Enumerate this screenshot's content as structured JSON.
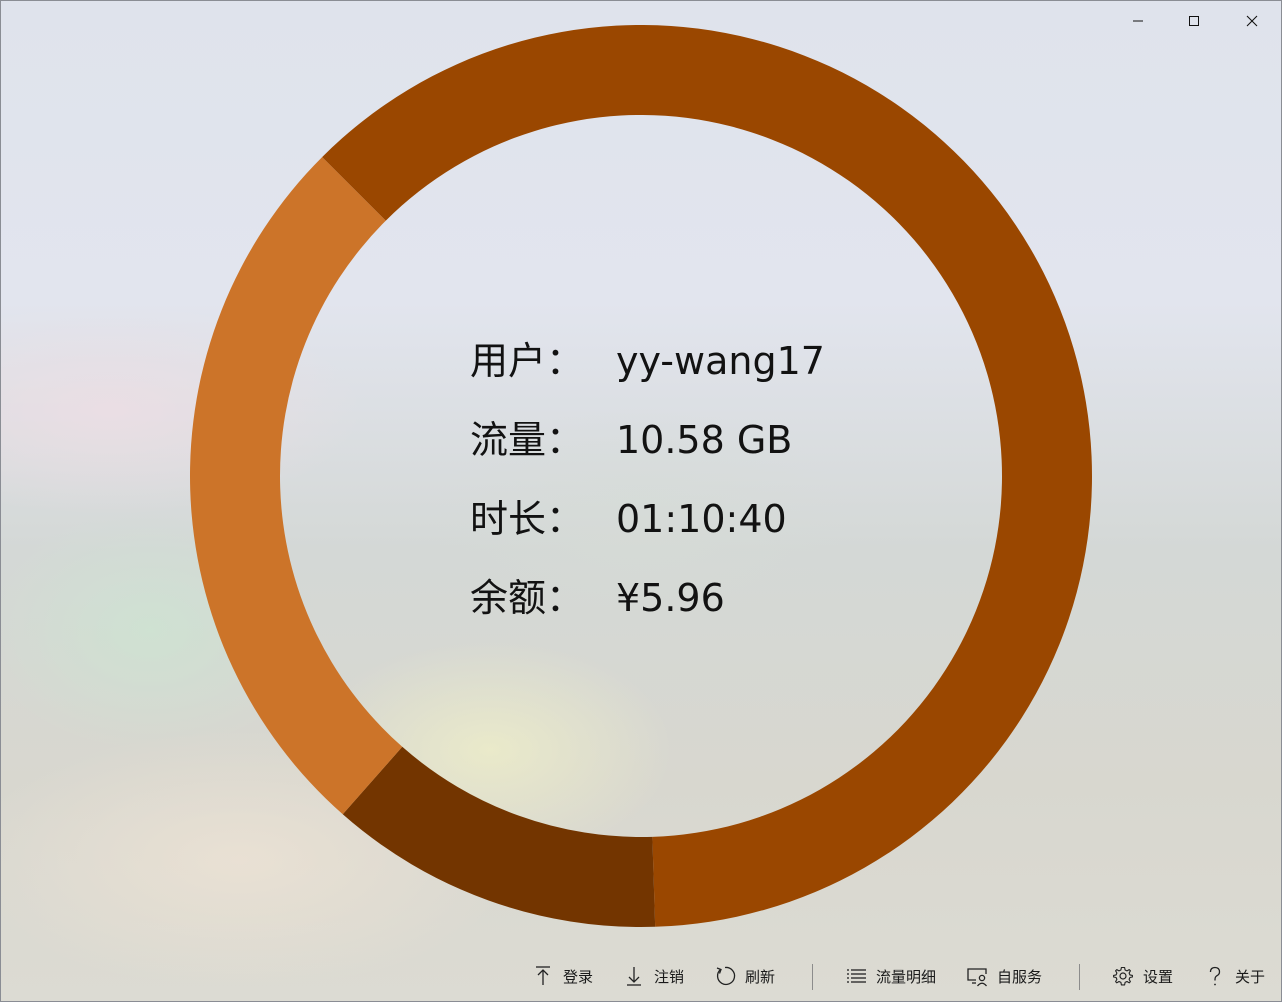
{
  "window": {
    "controls": [
      "minimize-icon",
      "maximize-icon",
      "close-icon"
    ]
  },
  "usage_ring": {
    "segments": [
      {
        "name": "flow",
        "fraction": 0.62,
        "color": "#9a4700"
      },
      {
        "name": "time",
        "fraction": 0.12,
        "color": "#733500"
      },
      {
        "name": "balance",
        "fraction": 0.26,
        "color": "#cc7429"
      }
    ]
  },
  "info": {
    "user_label": "用户：",
    "user_value": "yy-wang17",
    "flow_label": "流量：",
    "flow_value": "10.58 GB",
    "time_label": "时长：",
    "time_value": "01:10:40",
    "balance_label": "余额：",
    "balance_value": "¥5.96"
  },
  "commandbar": {
    "login": {
      "label": "登录",
      "icon": "arrow-up-icon"
    },
    "logout": {
      "label": "注销",
      "icon": "arrow-down-icon"
    },
    "refresh": {
      "label": "刷新",
      "icon": "refresh-icon"
    },
    "flow_detail": {
      "label": "流量明细",
      "icon": "list-icon"
    },
    "self_service": {
      "label": "自服务",
      "icon": "person-screen-icon"
    },
    "settings": {
      "label": "设置",
      "icon": "gear-icon"
    },
    "about": {
      "label": "关于",
      "icon": "question-icon"
    }
  }
}
